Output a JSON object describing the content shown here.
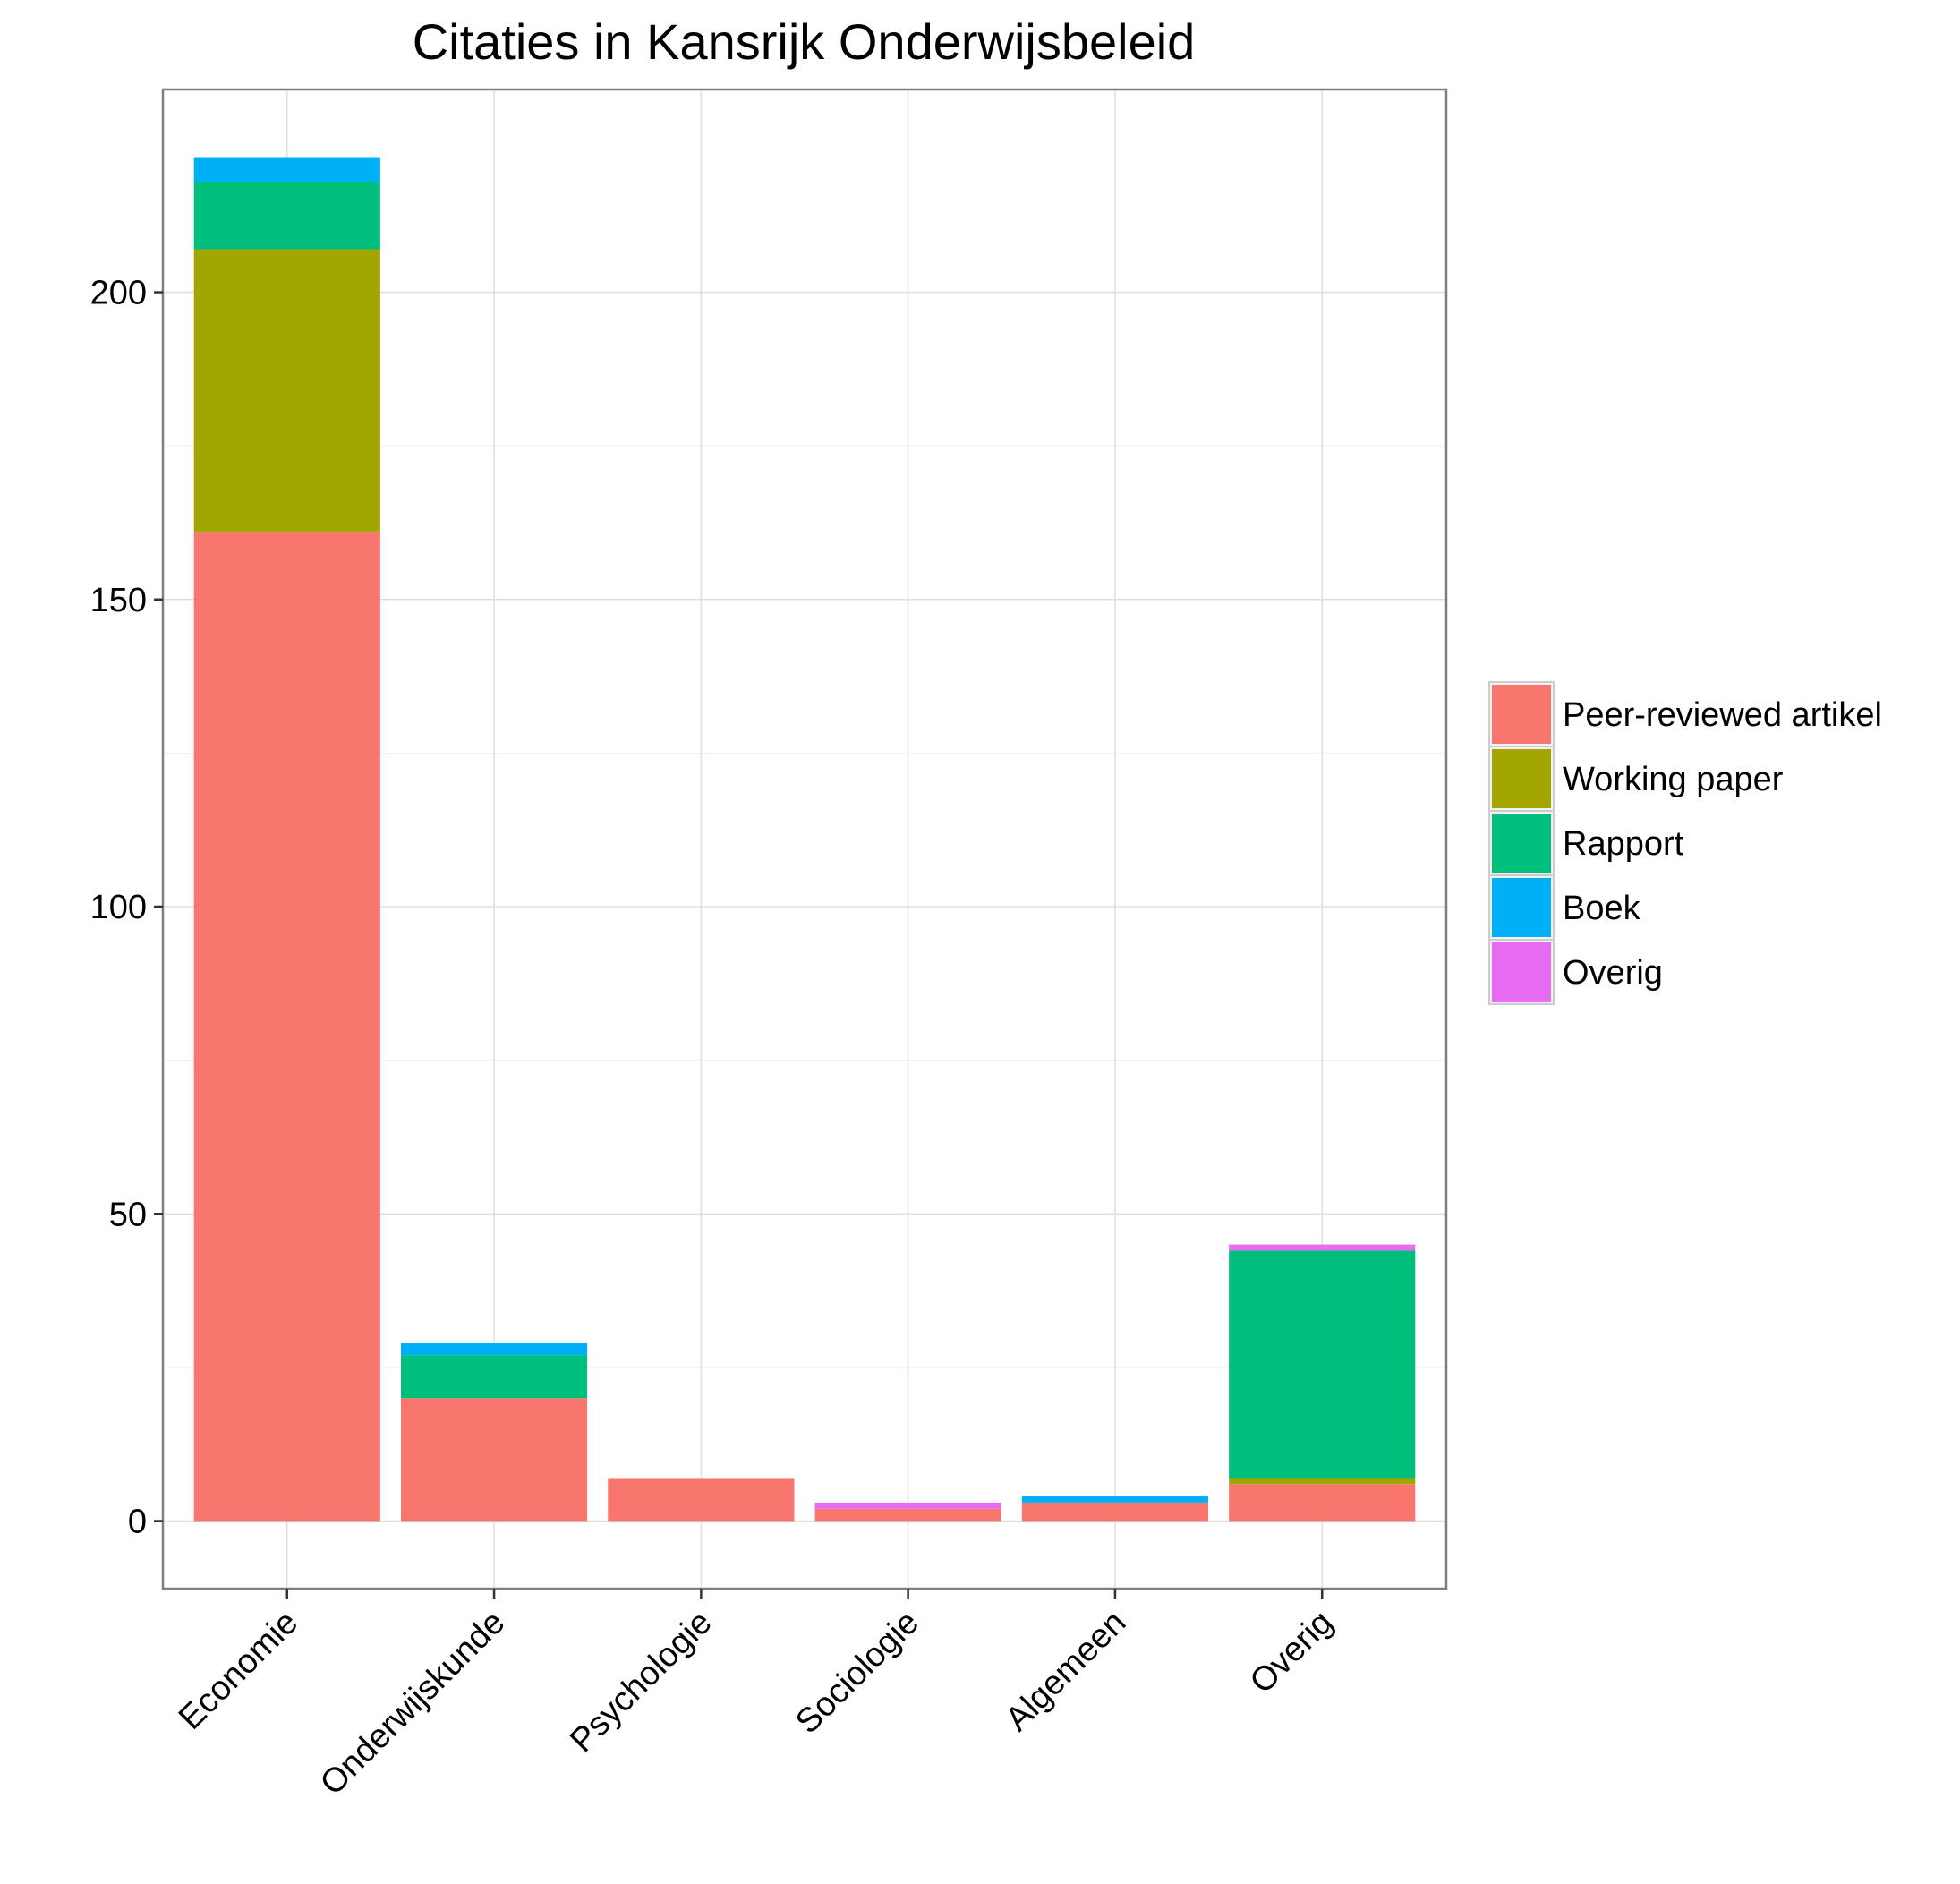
{
  "chart_data": {
    "type": "bar",
    "stacked": true,
    "title": "Citaties in Kansrijk Onderwijsbeleid",
    "xlabel": "",
    "ylabel": "",
    "categories": [
      "Economie",
      "Onderwijskunde",
      "Psychologie",
      "Sociologie",
      "Algemeen",
      "Overig"
    ],
    "ylim": [
      -11,
      233
    ],
    "yticks": [
      0,
      50,
      100,
      150,
      200
    ],
    "grid": true,
    "legend_position": "right",
    "series": [
      {
        "name": "Peer-reviewed artikel",
        "color": "#F8766D",
        "values": [
          161,
          20,
          7,
          2,
          3,
          6
        ]
      },
      {
        "name": "Working paper",
        "color": "#A3A500",
        "values": [
          46,
          0,
          0,
          0,
          0,
          1
        ]
      },
      {
        "name": "Rapport",
        "color": "#00BF7D",
        "values": [
          11,
          7,
          0,
          0,
          0,
          37
        ]
      },
      {
        "name": "Boek",
        "color": "#00B0F6",
        "values": [
          4,
          2,
          0,
          0,
          1,
          0
        ]
      },
      {
        "name": "Overig",
        "color": "#E76BF3",
        "values": [
          0,
          0,
          0,
          1,
          0,
          1
        ]
      }
    ]
  }
}
